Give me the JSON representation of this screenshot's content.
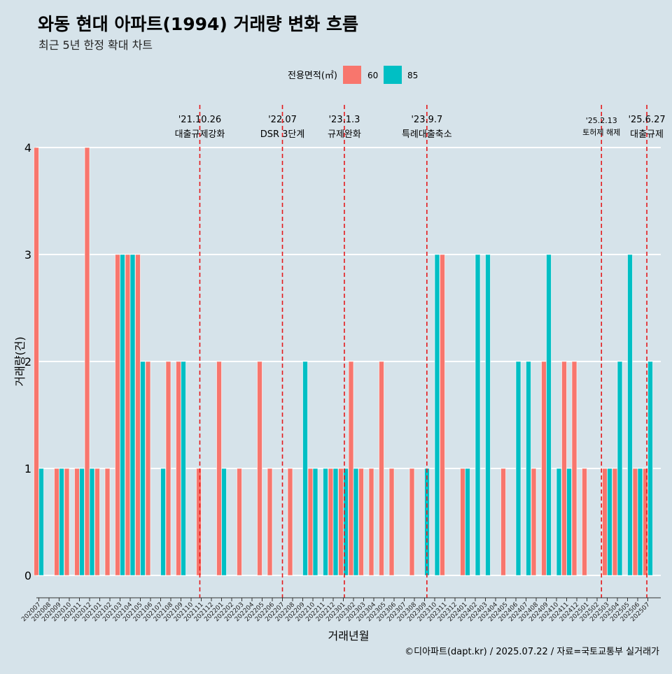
{
  "colors": {
    "background": "#d6e3ea",
    "s60": "#f8766d",
    "s85": "#00bfc4",
    "event_line": "#e41a1c",
    "grid": "#ffffff"
  },
  "chart_data": {
    "type": "bar",
    "title": "와동 현대 아파트(1994) 거래량 변화 흐름",
    "subtitle": "최근 5년 한정 확대 차트",
    "xlabel": "거래년월",
    "ylabel": "거래량(건)",
    "ylim": [
      0,
      4
    ],
    "y_ticks": [
      0,
      1,
      2,
      3,
      4
    ],
    "legend": {
      "title": "전용면적(㎡)",
      "position": "top"
    },
    "caption": "©디아파트(dapt.kr) / 2025.07.22 / 자료=국토교통부 실거래가",
    "categories": [
      "202007",
      "202008",
      "202009",
      "202010",
      "202011",
      "202012",
      "202101",
      "202102",
      "202103",
      "202104",
      "202105",
      "202106",
      "202107",
      "202108",
      "202109",
      "202110",
      "202111",
      "202112",
      "202201",
      "202202",
      "202203",
      "202204",
      "202205",
      "202206",
      "202207",
      "202208",
      "202209",
      "202210",
      "202211",
      "202212",
      "202301",
      "202302",
      "202303",
      "202304",
      "202305",
      "202306",
      "202307",
      "202308",
      "202309",
      "202310",
      "202311",
      "202312",
      "202401",
      "202402",
      "202403",
      "202404",
      "202405",
      "202406",
      "202407",
      "202408",
      "202409",
      "202410",
      "202411",
      "202412",
      "202501",
      "202502",
      "202503",
      "202504",
      "202505",
      "202506",
      "202507"
    ],
    "series": [
      {
        "name": "60",
        "values": [
          4,
          0,
          1,
          1,
          1,
          4,
          1,
          1,
          3,
          3,
          3,
          2,
          0,
          2,
          2,
          0,
          1,
          0,
          2,
          0,
          1,
          0,
          2,
          1,
          0,
          1,
          0,
          1,
          0,
          1,
          1,
          2,
          1,
          1,
          2,
          1,
          0,
          1,
          0,
          0,
          3,
          0,
          1,
          0,
          0,
          0,
          1,
          0,
          0,
          1,
          2,
          0,
          2,
          2,
          1,
          0,
          1,
          1,
          0,
          1,
          1
        ]
      },
      {
        "name": "85",
        "values": [
          1,
          0,
          1,
          0,
          1,
          1,
          0,
          0,
          3,
          3,
          2,
          0,
          1,
          0,
          2,
          0,
          0,
          0,
          1,
          0,
          0,
          0,
          0,
          0,
          0,
          0,
          2,
          1,
          1,
          1,
          1,
          1,
          0,
          0,
          0,
          0,
          0,
          0,
          1,
          3,
          0,
          0,
          1,
          3,
          3,
          0,
          0,
          2,
          2,
          0,
          3,
          1,
          1,
          0,
          0,
          0,
          1,
          2,
          3,
          1,
          2
        ]
      }
    ],
    "events": [
      {
        "date": "'21.10.26",
        "label": "대출규제강화",
        "month": 202110.86
      },
      {
        "date": "'22.07",
        "label": "DSR 3단계",
        "month": 202207.0
      },
      {
        "date": "'23.1.3",
        "label": "규제완화",
        "month": 202301.1
      },
      {
        "date": "'23.9.7",
        "label": "특례대출축소",
        "month": 202309.23
      },
      {
        "date": "'25.2.13",
        "label": "토허제 해제",
        "month": 202502.43
      },
      {
        "date": "'25.6.27",
        "label": "대출규제",
        "month": 202506.9
      }
    ]
  }
}
